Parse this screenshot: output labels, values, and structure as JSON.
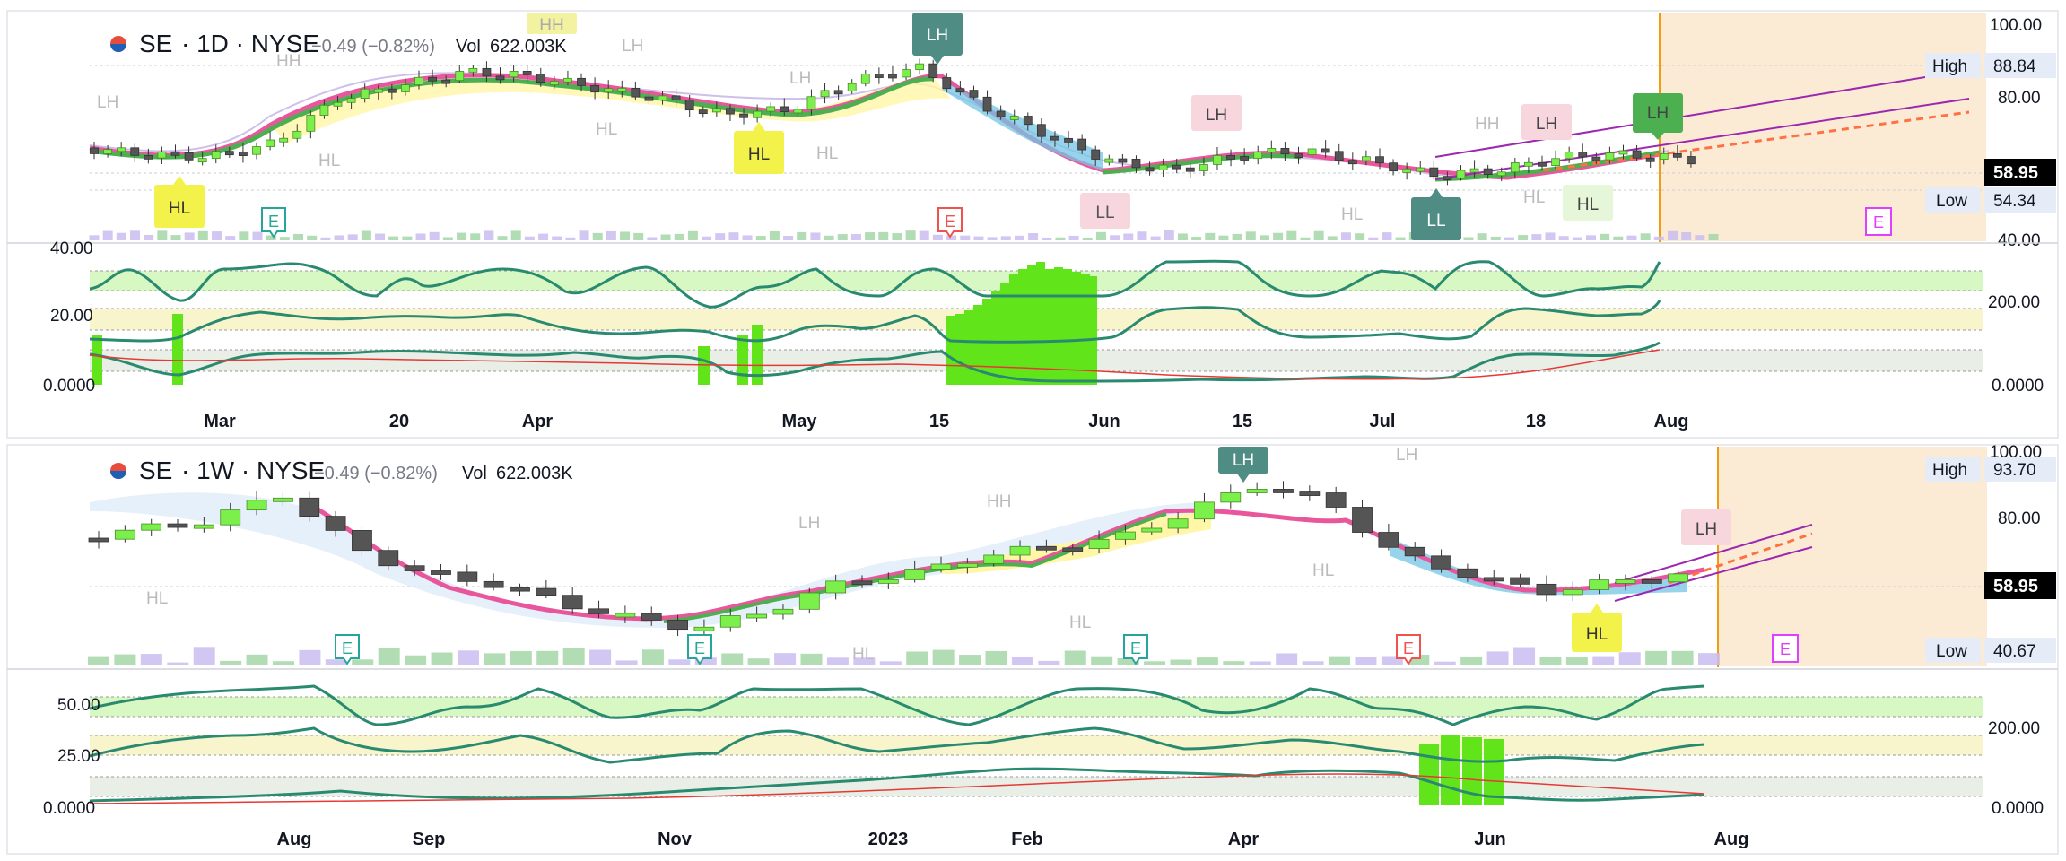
{
  "colors": {
    "up_candle": "#7cf04a",
    "down_candle": "#555555",
    "ema_fast": "#e8579c",
    "ema_slow": "#4caf50",
    "cloud_bull": "#f6ef5a",
    "cloud_bear": "#74c6e4",
    "oscillator_line": "#2a8a70",
    "volume_up": "#a5d6a7",
    "volume_down": "#c9bdf0",
    "forecast_bg": "#fcebd4",
    "price_tag_bg": "#000000",
    "high_low_bg": "#e6ecf7"
  },
  "panels": [
    {
      "id": "daily",
      "symbol": "SE",
      "interval_exchange": "· 1D · NYSE",
      "change": "−0.49 (−0.82%)",
      "volume_label": "Vol",
      "volume_value": "622.003K",
      "high_label": "High",
      "high_value": "88.84",
      "low_label": "Low",
      "low_value": "54.34",
      "last_price": "58.95",
      "price_axis": [
        "100.00",
        "80.00",
        "40.00"
      ],
      "osc_left_axis": [
        "40.00",
        "20.00",
        "0.0000"
      ],
      "osc_right_axis": [
        "200.00",
        "0.0000"
      ],
      "time_axis": [
        "Mar",
        "20",
        "Apr",
        "May",
        "15",
        "Jun",
        "15",
        "Jul",
        "18",
        "Aug"
      ],
      "earnings_marker": "E",
      "swing_labels": [
        "HL",
        "LH",
        "HL",
        "LH",
        "LL",
        "LL",
        "LH",
        "HL",
        "LH",
        "HH",
        "HH",
        "LH",
        "HL",
        "HL",
        "LH",
        "LH",
        "HL",
        "HL",
        "HH",
        "HL"
      ]
    },
    {
      "id": "weekly",
      "symbol": "SE",
      "interval_exchange": "· 1W · NYSE",
      "change": "−0.49 (−0.82%)",
      "volume_label": "Vol",
      "volume_value": "622.003K",
      "high_label": "High",
      "high_value": "93.70",
      "low_label": "Low",
      "low_value": "40.67",
      "last_price": "58.95",
      "price_axis": [
        "100.00",
        "80.00"
      ],
      "osc_left_axis": [
        "50.00",
        "25.00",
        "0.0000"
      ],
      "osc_right_axis": [
        "200.00",
        "0.0000"
      ],
      "time_axis": [
        "Aug",
        "Sep",
        "Nov",
        "2023",
        "Feb",
        "Apr",
        "Jun",
        "Aug"
      ],
      "earnings_marker": "E",
      "swing_labels": [
        "LH",
        "HL",
        "LH",
        "HH",
        "HL",
        "LH",
        "HL",
        "HL",
        "LH",
        "HL"
      ]
    }
  ],
  "chart_data": [
    {
      "type": "candlestick",
      "title": "SE · 1D · NYSE",
      "ylim": [
        40,
        100
      ],
      "series": [
        {
          "name": "SE",
          "x": [
            "Mar",
            "Apr",
            "May",
            "May 15",
            "Jun",
            "Jul",
            "Jul 18",
            "Aug"
          ],
          "close": [
            61,
            82,
            71,
            85,
            58,
            55,
            60,
            58.95
          ]
        }
      ],
      "high": 88.84,
      "low": 54.34,
      "last": 58.95
    },
    {
      "type": "candlestick",
      "title": "SE · 1W · NYSE",
      "ylim": [
        40,
        100
      ],
      "series": [
        {
          "name": "SE",
          "x": [
            "Aug",
            "Sep",
            "Nov",
            "2023",
            "Feb",
            "Apr",
            "Jun",
            "Aug"
          ],
          "close": [
            85,
            60,
            45,
            55,
            68,
            85,
            58,
            58.95
          ]
        }
      ],
      "high": 93.7,
      "low": 40.67,
      "last": 58.95
    }
  ]
}
